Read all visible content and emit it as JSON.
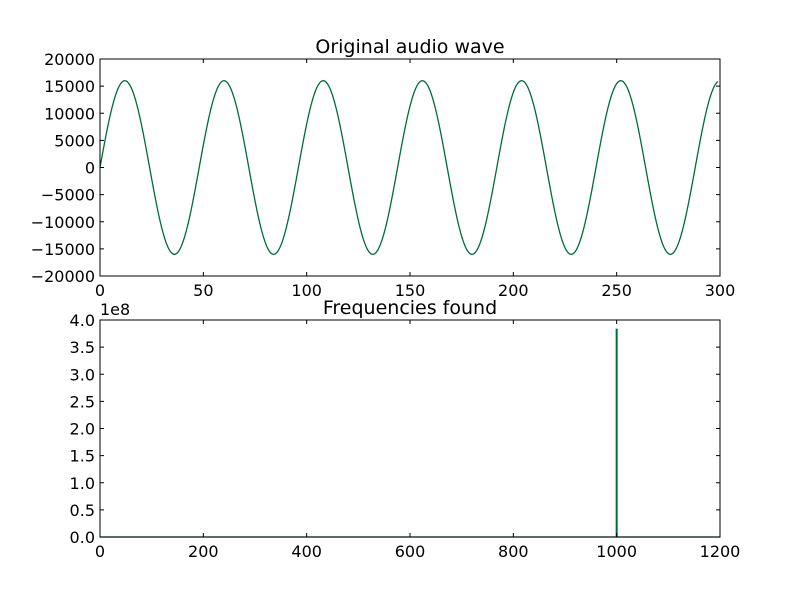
{
  "figure": {
    "background": "#ffffff",
    "line_color": "#006c3a"
  },
  "chart_data": [
    {
      "type": "line",
      "title": "Original audio wave",
      "xlabel": "",
      "ylabel": "",
      "xlim": [
        0,
        300
      ],
      "ylim": [
        -20000,
        20000
      ],
      "x_ticks": [
        0,
        50,
        100,
        150,
        200,
        250,
        300
      ],
      "y_ticks": [
        -20000,
        -15000,
        -10000,
        -5000,
        0,
        5000,
        10000,
        15000,
        20000
      ],
      "grid": false,
      "series": [
        {
          "function": "sine",
          "amplitude": 16000,
          "period_samples": 48,
          "phase": 0,
          "x_range": [
            0,
            299
          ],
          "color": "#006c3a"
        }
      ]
    },
    {
      "type": "line",
      "title": "Frequencies found",
      "xlabel": "",
      "ylabel": "",
      "xlim": [
        0,
        1200
      ],
      "ylim": [
        0,
        400000000
      ],
      "y_offset_label": "1e8",
      "x_ticks": [
        0,
        200,
        400,
        600,
        800,
        1000,
        1200
      ],
      "y_ticks": [
        0.0,
        0.5,
        1.0,
        1.5,
        2.0,
        2.5,
        3.0,
        3.5,
        4.0
      ],
      "grid": false,
      "series": [
        {
          "baseline": 0,
          "peaks": [
            {
              "x": 1000,
              "y": 384000000
            }
          ],
          "x_range": [
            0,
            1200
          ],
          "color": "#006c3a"
        }
      ]
    }
  ]
}
